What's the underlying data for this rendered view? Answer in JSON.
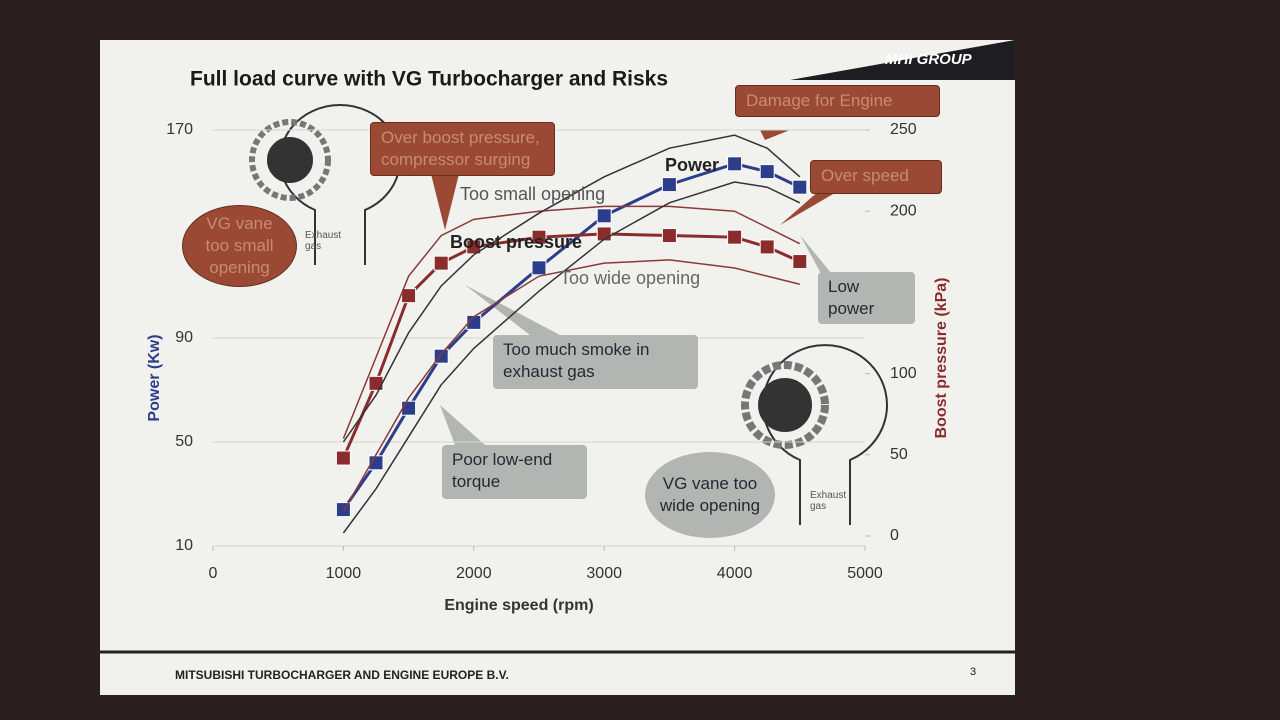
{
  "header": {
    "title": "Full load curve with VG Turbocharger and Risks",
    "logo": "MHI GROUP"
  },
  "chart_data": {
    "type": "line",
    "x_label": "Engine speed (rpm)",
    "y_label": "Power (Kw)",
    "y2_label": "Boost pressure (kPa)",
    "x": [
      1000,
      1250,
      1500,
      1750,
      2000,
      2500,
      3000,
      3500,
      4000,
      4250,
      4500
    ],
    "xlim": [
      0,
      5000
    ],
    "xticks": [
      0,
      1000,
      2000,
      3000,
      4000,
      5000
    ],
    "ylim": [
      10,
      170
    ],
    "yticks": [
      10,
      50,
      90,
      170
    ],
    "y2lim": [
      0,
      250
    ],
    "y2ticks": [
      0,
      50,
      100,
      200,
      250
    ],
    "grid": true,
    "series": [
      {
        "name": "Power",
        "color": "#2c3d8c",
        "values": [
          24,
          42,
          63,
          83,
          96,
          117,
          137,
          149,
          157,
          154,
          148
        ]
      },
      {
        "name": "Boost pressure",
        "color": "#8a2c2c",
        "axis": "y2",
        "values": [
          48,
          94,
          148,
          168,
          178,
          184,
          186,
          185,
          184,
          178,
          169
        ]
      },
      {
        "name": "Too small opening",
        "color": "#8a3a3a",
        "axis": "y2",
        "values": [
          60,
          110,
          160,
          185,
          195,
          200,
          203,
          203,
          200,
          190,
          180
        ]
      },
      {
        "name": "Too wide opening",
        "color": "#8a3a3a",
        "axis": "y2",
        "values": [
          15,
          50,
          85,
          112,
          135,
          160,
          168,
          170,
          165,
          160,
          155
        ]
      },
      {
        "color": "#333333",
        "values": [
          50,
          68,
          92,
          110,
          122,
          138,
          152,
          163,
          168,
          163,
          152
        ]
      },
      {
        "color": "#333333",
        "values": [
          15,
          32,
          52,
          72,
          86,
          108,
          128,
          142,
          150,
          148,
          142
        ]
      }
    ],
    "annotations": [
      "Over boost pressure, compressor surging",
      "Damage for Engine",
      "Over speed",
      "Low power",
      "Too much smoke in exhaust gas",
      "Poor low-end torque",
      "VG vane too small opening",
      "VG vane too wide opening",
      "Exhaust gas",
      "Exhaust gas"
    ]
  },
  "footer": {
    "company": "MITSUBISHI TURBOCHARGER AND ENGINE EUROPE B.V.",
    "page": "3"
  }
}
